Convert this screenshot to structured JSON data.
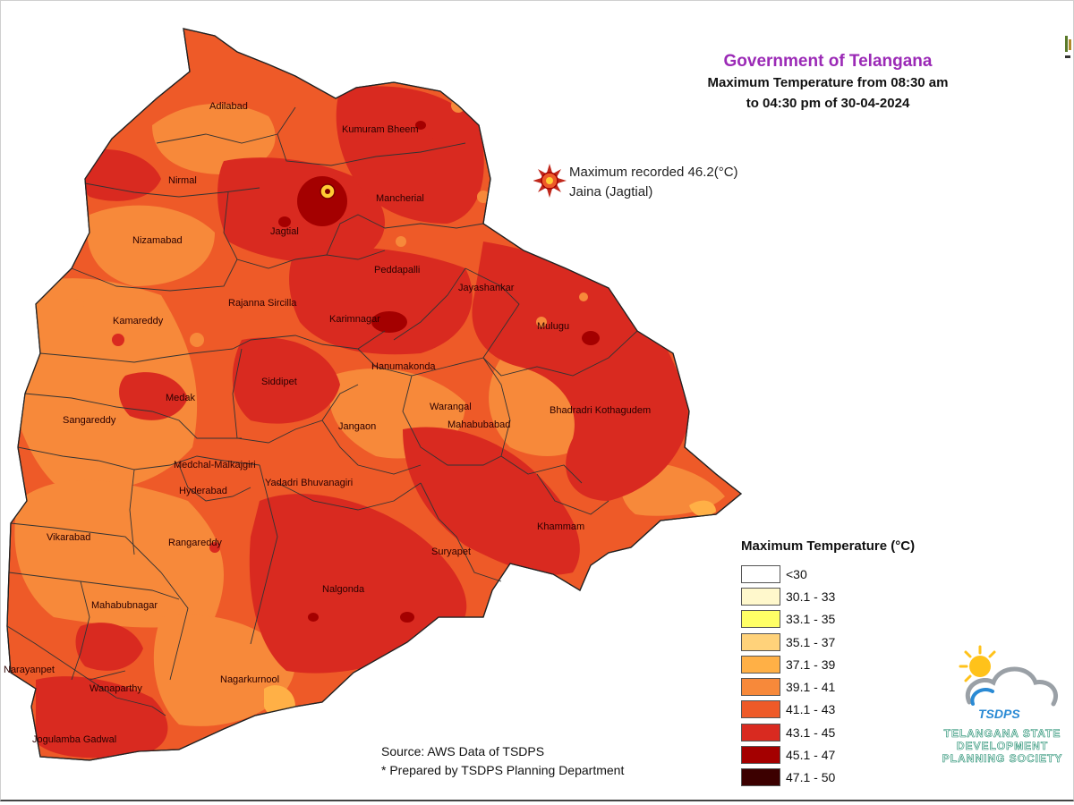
{
  "header": {
    "title": "Government of Telangana",
    "subtitle_line1": "Maximum Temperature from 08:30 am",
    "subtitle_line2": "to 04:30 pm of 30-04-2024"
  },
  "max_record": {
    "line1": "Maximum recorded 46.2(°C)",
    "line2": "Jaina (Jagtial)",
    "icon": "sun-burst-icon"
  },
  "districts": [
    "Adilabad",
    "Kumuram Bheem",
    "Nirmal",
    "Mancherial",
    "Jagtial",
    "Nizamabad",
    "Peddapalli",
    "Jayashankar",
    "Rajanna Sircilla",
    "Karimnagar",
    "Kamareddy",
    "Mulugu",
    "Hanumakonda",
    "Siddipet",
    "Medak",
    "Warangal",
    "Bhadradri Kothagudem",
    "Sangareddy",
    "Jangaon",
    "Mahabubabad",
    "Medchal-Malkajgiri",
    "Hyderabad",
    "Yadadri Bhuvanagiri",
    "Khammam",
    "Vikarabad",
    "Rangareddy",
    "Suryapet",
    "Nalgonda",
    "Mahabubnagar",
    "Narayanpet",
    "Wanaparthy",
    "Nagarkurnool",
    "Jogulamba Gadwal"
  ],
  "legend": {
    "title": "Maximum Temperature (°C)",
    "items": [
      {
        "label": "<30",
        "color": "#ffffff"
      },
      {
        "label": "30.1 - 33",
        "color": "#fff8cc"
      },
      {
        "label": "33.1 - 35",
        "color": "#ffff66"
      },
      {
        "label": "35.1 - 37",
        "color": "#ffd27a"
      },
      {
        "label": "37.1 - 39",
        "color": "#ffb046"
      },
      {
        "label": "39.1 - 41",
        "color": "#f7893a"
      },
      {
        "label": "41.1 - 43",
        "color": "#ee5a28"
      },
      {
        "label": "43.1 - 45",
        "color": "#d92a20"
      },
      {
        "label": "45.1 - 47",
        "color": "#a40000"
      },
      {
        "label": "47.1 - 50",
        "color": "#3c0000"
      }
    ]
  },
  "source": {
    "line1": "Source: AWS Data of TSDPS",
    "line2": "* Prepared by TSDPS Planning Department"
  },
  "logo": {
    "abbr": "TSDPS",
    "line1": "TELANGANA STATE",
    "line2": "DEVELOPMENT",
    "line3": "PLANNING SOCIETY",
    "icon": "sun-cloud-logo-icon"
  },
  "colors": {
    "title": "#9b2ab6",
    "map_base": "#ee5a28",
    "map_hot": "#d92a20",
    "map_hottest": "#a40000",
    "map_warm": "#f7893a",
    "logo_green": "#1a8a6b",
    "logo_blue": "#2a8ad4",
    "sun_yellow": "#ffc21a"
  }
}
